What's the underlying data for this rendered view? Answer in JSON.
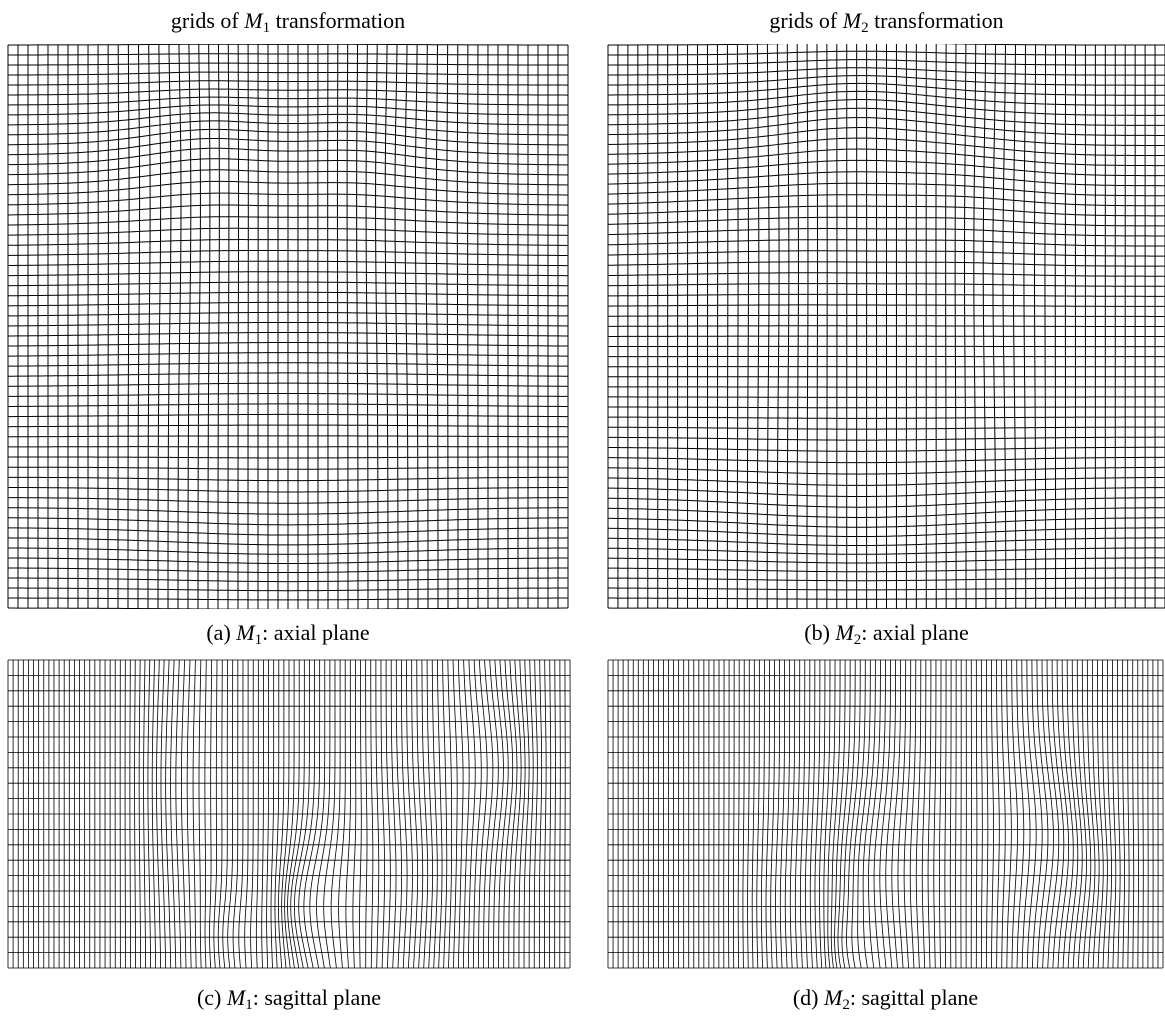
{
  "panels": [
    {
      "title": {
        "before": "grids of",
        "symbol": "M",
        "sub": "1",
        "after": "transformation"
      },
      "caption": {
        "label": "(a)",
        "symbol": "M",
        "sub": "1",
        "rest": ": axial plane"
      }
    },
    {
      "title": {
        "before": "grids of",
        "symbol": "M",
        "sub": "2",
        "after": "transformation"
      },
      "caption": {
        "label": "(b)",
        "symbol": "M",
        "sub": "2",
        "rest": ": axial plane"
      }
    },
    {
      "caption": {
        "label": "(c)",
        "symbol": "M",
        "sub": "1",
        "rest": ": sagittal plane"
      }
    },
    {
      "caption": {
        "label": "(d)",
        "symbol": "M",
        "sub": "2",
        "rest": ": sagittal plane"
      }
    }
  ]
}
